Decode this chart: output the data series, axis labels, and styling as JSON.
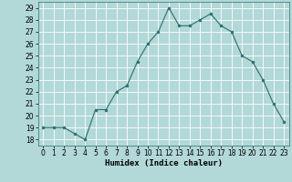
{
  "x": [
    0,
    1,
    2,
    3,
    4,
    5,
    6,
    7,
    8,
    9,
    10,
    11,
    12,
    13,
    14,
    15,
    16,
    17,
    18,
    19,
    20,
    21,
    22,
    23
  ],
  "y": [
    19,
    19,
    19,
    18.5,
    18,
    20.5,
    20.5,
    22,
    22.5,
    24.5,
    26,
    27,
    29,
    27.5,
    27.5,
    28,
    28.5,
    27.5,
    27,
    25,
    24.5,
    23,
    21,
    19.5
  ],
  "line_color": "#2d6e6e",
  "marker_color": "#2d6e6e",
  "bg_color": "#b2d8d8",
  "grid_color": "#ffffff",
  "xlabel": "Humidex (Indice chaleur)",
  "xlim": [
    -0.5,
    23.5
  ],
  "ylim": [
    17.5,
    29.5
  ],
  "yticks": [
    18,
    19,
    20,
    21,
    22,
    23,
    24,
    25,
    26,
    27,
    28,
    29
  ],
  "xticks": [
    0,
    1,
    2,
    3,
    4,
    5,
    6,
    7,
    8,
    9,
    10,
    11,
    12,
    13,
    14,
    15,
    16,
    17,
    18,
    19,
    20,
    21,
    22,
    23
  ],
  "xlabel_fontsize": 6.5,
  "tick_fontsize": 5.5
}
